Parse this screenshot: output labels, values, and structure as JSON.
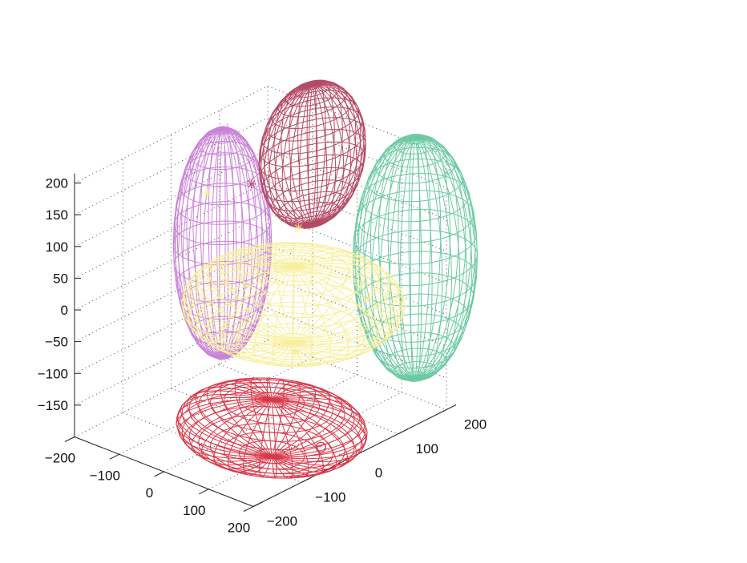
{
  "chart_data": {
    "type": "scatter",
    "subtype": "3d-wireframe-ellipsoids",
    "title": "",
    "xlabel": "",
    "ylabel": "",
    "zlabel": "",
    "xlim": [
      -200,
      200
    ],
    "ylim": [
      -200,
      200
    ],
    "zlim": [
      -200,
      200
    ],
    "grid": true,
    "x_ticks": [
      "−200",
      "−100",
      "0",
      "100",
      "200"
    ],
    "y_ticks": [
      "−200",
      "−100",
      "0",
      "100",
      "200"
    ],
    "z_ticks": [
      "200",
      "150",
      "100",
      "50",
      "0",
      "−50",
      "−100",
      "−150"
    ],
    "series": [
      {
        "color": "#ca83d8",
        "marker": "+",
        "center": [
          -150,
          60,
          20
        ],
        "radii": [
          80,
          70,
          180
        ]
      },
      {
        "color": "#b44a64",
        "marker": "*",
        "center": [
          -100,
          200,
          120
        ],
        "radii": [
          70,
          90,
          110
        ]
      },
      {
        "color": "#6cc9a3",
        "marker": "x",
        "center": [
          130,
          200,
          20
        ],
        "radii": [
          100,
          90,
          190
        ]
      },
      {
        "color": "#d8384a",
        "marker": "o",
        "center": [
          90,
          -60,
          -160
        ],
        "radii": [
          170,
          120,
          45
        ]
      },
      {
        "color": "#f8ef9c",
        "marker": "*",
        "center": [
          30,
          40,
          -20
        ],
        "radii": [
          190,
          150,
          60
        ]
      }
    ]
  }
}
